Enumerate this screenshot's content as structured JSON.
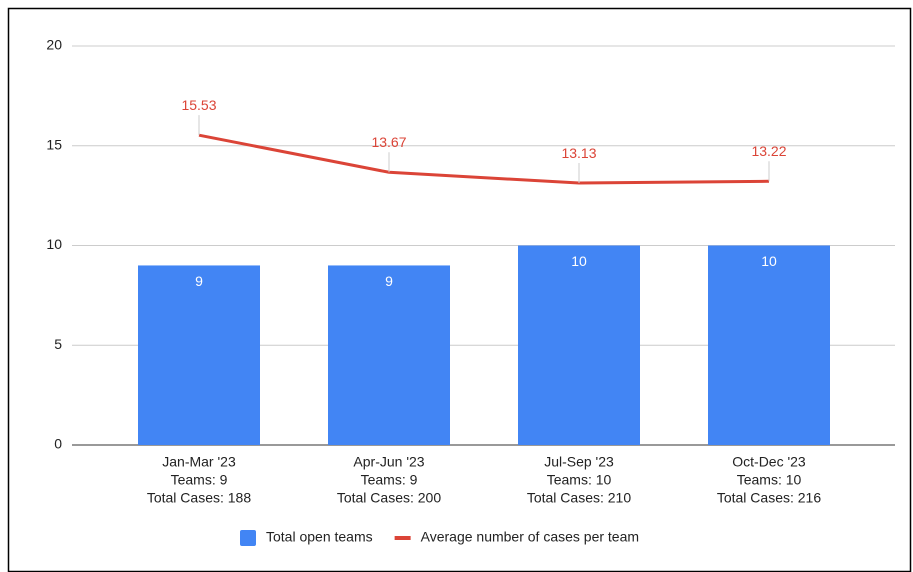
{
  "chart_data": {
    "type": "combo",
    "categories": [
      [
        "Jan-Mar '23",
        "Teams: 9",
        "Total Cases: 188"
      ],
      [
        "Apr-Jun '23",
        "Teams: 9",
        "Total Cases: 200"
      ],
      [
        "Jul-Sep '23",
        "Teams: 10",
        "Total Cases: 210"
      ],
      [
        "Oct-Dec '23",
        "Teams: 10",
        "Total Cases: 216"
      ]
    ],
    "series": [
      {
        "name": "Total open teams",
        "type": "bar",
        "color": "#4285f4",
        "values": [
          9,
          9,
          10,
          10
        ]
      },
      {
        "name": "Average number of cases per team",
        "type": "line",
        "color": "#db4437",
        "values": [
          15.53,
          13.67,
          13.13,
          13.22
        ]
      }
    ],
    "ylim": [
      0,
      20
    ],
    "yticks": [
      0,
      5,
      10,
      15,
      20
    ],
    "grid": true,
    "legend": "bottom"
  }
}
